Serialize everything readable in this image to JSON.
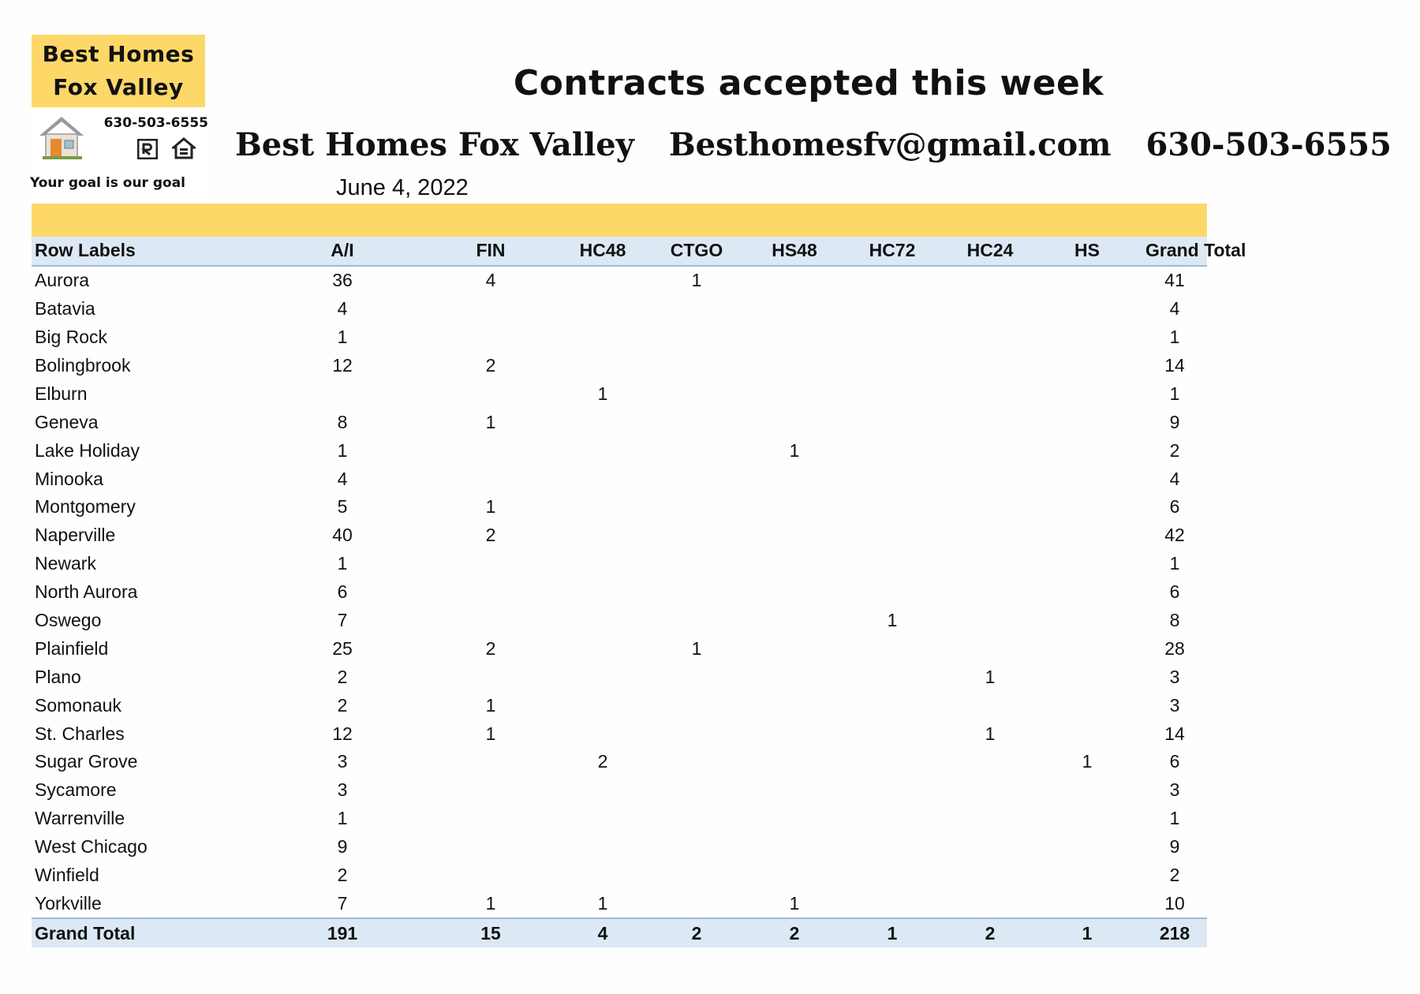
{
  "logo": {
    "line1": "Best Homes",
    "line2": "Fox Valley",
    "phone": "630-503-6555",
    "tagline": "Your goal is our goal",
    "icons": [
      "house-icon",
      "realtor-icon",
      "equal-housing-icon"
    ]
  },
  "title": "Contracts accepted this week",
  "contact": {
    "company": "Best Homes Fox Valley",
    "email": "Besthomesfv@gmail.com",
    "phone": "630-503-6555"
  },
  "date": "June 4, 2022",
  "colors": {
    "accent_yellow": "#fdd868",
    "header_blue": "#dce9f5",
    "rule_blue": "#9db9d8"
  },
  "table": {
    "headers": [
      "Row Labels",
      "A/I",
      "FIN",
      "HC48",
      "CTGO",
      "HS48",
      "HC72",
      "HC24",
      "HS",
      "Grand Total"
    ],
    "rows": [
      [
        "Aurora",
        "36",
        "4",
        "",
        "1",
        "",
        "",
        "",
        "",
        "41"
      ],
      [
        "Batavia",
        "4",
        "",
        "",
        "",
        "",
        "",
        "",
        "",
        "4"
      ],
      [
        "Big Rock",
        "1",
        "",
        "",
        "",
        "",
        "",
        "",
        "",
        "1"
      ],
      [
        "Bolingbrook",
        "12",
        "2",
        "",
        "",
        "",
        "",
        "",
        "",
        "14"
      ],
      [
        "Elburn",
        "",
        "",
        "1",
        "",
        "",
        "",
        "",
        "",
        "1"
      ],
      [
        "Geneva",
        "8",
        "1",
        "",
        "",
        "",
        "",
        "",
        "",
        "9"
      ],
      [
        "Lake Holiday",
        "1",
        "",
        "",
        "",
        "1",
        "",
        "",
        "",
        "2"
      ],
      [
        "Minooka",
        "4",
        "",
        "",
        "",
        "",
        "",
        "",
        "",
        "4"
      ],
      [
        "Montgomery",
        "5",
        "1",
        "",
        "",
        "",
        "",
        "",
        "",
        "6"
      ],
      [
        "Naperville",
        "40",
        "2",
        "",
        "",
        "",
        "",
        "",
        "",
        "42"
      ],
      [
        "Newark",
        "1",
        "",
        "",
        "",
        "",
        "",
        "",
        "",
        "1"
      ],
      [
        "North Aurora",
        "6",
        "",
        "",
        "",
        "",
        "",
        "",
        "",
        "6"
      ],
      [
        "Oswego",
        "7",
        "",
        "",
        "",
        "",
        "1",
        "",
        "",
        "8"
      ],
      [
        "Plainfield",
        "25",
        "2",
        "",
        "1",
        "",
        "",
        "",
        "",
        "28"
      ],
      [
        "Plano",
        "2",
        "",
        "",
        "",
        "",
        "",
        "1",
        "",
        "3"
      ],
      [
        "Somonauk",
        "2",
        "1",
        "",
        "",
        "",
        "",
        "",
        "",
        "3"
      ],
      [
        "St. Charles",
        "12",
        "1",
        "",
        "",
        "",
        "",
        "1",
        "",
        "14"
      ],
      [
        "Sugar Grove",
        "3",
        "",
        "2",
        "",
        "",
        "",
        "",
        "1",
        "6"
      ],
      [
        "Sycamore",
        "3",
        "",
        "",
        "",
        "",
        "",
        "",
        "",
        "3"
      ],
      [
        "Warrenville",
        "1",
        "",
        "",
        "",
        "",
        "",
        "",
        "",
        "1"
      ],
      [
        "West Chicago",
        "9",
        "",
        "",
        "",
        "",
        "",
        "",
        "",
        "9"
      ],
      [
        "Winfield",
        "2",
        "",
        "",
        "",
        "",
        "",
        "",
        "",
        "2"
      ],
      [
        "Yorkville",
        "7",
        "1",
        "1",
        "",
        "1",
        "",
        "",
        "",
        "10"
      ]
    ],
    "total": [
      "Grand Total",
      "191",
      "15",
      "4",
      "2",
      "2",
      "1",
      "2",
      "1",
      "218"
    ]
  }
}
